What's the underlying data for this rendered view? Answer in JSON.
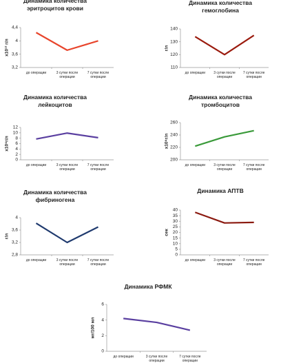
{
  "chart_data": [
    {
      "type": "line",
      "title": "Динамика количества эритроцитов крови",
      "y_label": "x10¹² г/л",
      "categories": [
        "до операции",
        "3 сутки после операции",
        "7 сутки после операции"
      ],
      "values": [
        4.25,
        3.72,
        4.0
      ],
      "color": "#e8452c",
      "ylim": [
        3.2,
        4.4
      ],
      "yticks": [
        {
          "value": 3.2,
          "label": "3,2"
        },
        {
          "value": 3.6,
          "label": "3,6"
        },
        4,
        {
          "value": 4.4,
          "label": "4,4"
        }
      ]
    },
    {
      "type": "line",
      "title": "Динамика количества гемоглобина",
      "y_label": "г/л",
      "categories": [
        "до операции",
        "3 сутки после операции",
        "7 сутки после операции"
      ],
      "values": [
        134,
        120,
        135
      ],
      "color": "#9b1b0e",
      "ylim": [
        110,
        140
      ],
      "yticks": [
        110,
        120,
        130,
        140
      ]
    },
    {
      "type": "line",
      "title": "Динамика количества лейкоцитов",
      "y_label": "x10⁹г/л",
      "categories": [
        "до операции",
        "3 сутки после операции",
        "7 сутки после операции"
      ],
      "values": [
        7.7,
        9.9,
        8.2
      ],
      "color": "#5a3fa0",
      "ylim": [
        0,
        12
      ],
      "yticks": [
        0,
        2,
        4,
        6,
        8,
        10,
        12
      ]
    },
    {
      "type": "line",
      "title": "Динамика количества тромбоцитов",
      "y_label": "x10⁹г/л",
      "categories": [
        "до операции",
        "3 сутки после операции",
        "7 сутки после операции"
      ],
      "values": [
        222,
        237,
        247
      ],
      "color": "#3a9a3a",
      "ylim": [
        200,
        260
      ],
      "yticks": [
        200,
        220,
        240,
        260
      ]
    },
    {
      "type": "line",
      "title": "Динамика количества фибриногена",
      "y_label": "г/л",
      "categories": [
        "до операции",
        "3 сутки после операции",
        "7 сутки после операции"
      ],
      "values": [
        3.82,
        3.2,
        3.7
      ],
      "color": "#1f3a6e",
      "ylim": [
        2.8,
        4
      ],
      "yticks": [
        {
          "value": 2.8,
          "label": "2,8"
        },
        {
          "value": 3.2,
          "label": "3,2"
        },
        {
          "value": 3.6,
          "label": "3,6"
        },
        4
      ]
    },
    {
      "type": "line",
      "title": "Динамика АПТВ",
      "y_label": "сек",
      "categories": [
        "до операции",
        "3 сутки после операции",
        "7 сутки после операции"
      ],
      "values": [
        38,
        28.5,
        29
      ],
      "color": "#8b1a10",
      "ylim": [
        0,
        40
      ],
      "yticks": [
        0,
        5,
        10,
        15,
        20,
        25,
        30,
        35,
        40
      ]
    },
    {
      "type": "line",
      "title": "Динамика РФМК",
      "y_label": "мг/100 мл",
      "categories": [
        "до операции",
        "3 сутки после операции",
        "7 сутки после операции"
      ],
      "values": [
        4.2,
        3.7,
        2.7
      ],
      "color": "#5a3fa0",
      "ylim": [
        0,
        6
      ],
      "yticks": [
        0,
        2,
        4,
        6
      ]
    }
  ]
}
